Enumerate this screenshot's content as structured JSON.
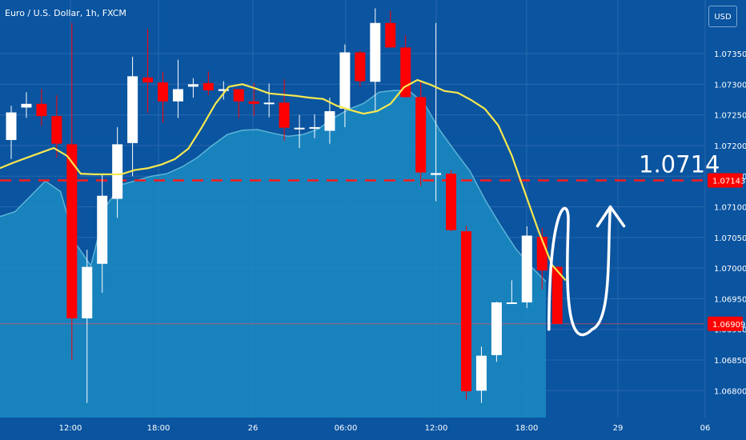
{
  "window": {
    "title": "Euro / U.S. Dollar, 1h, FXCM",
    "currency_button": "USD"
  },
  "colors": {
    "background": "#0a54a0",
    "grid": "#2b68ab",
    "bull_candle": "#ffffff",
    "bear_candle": "#ff0000",
    "moving_average": "#f7e84e",
    "area_fill": "#1b8bc2",
    "area_line": "#5db4d6",
    "level_line": "#ff1a1a",
    "axis_text": "#ffffff",
    "current_price_tag": "#ff0000",
    "projection_arrow": "#ffffff"
  },
  "chart_data": {
    "type": "candlestick",
    "title": "Euro / U.S. Dollar, 1h, FXCM",
    "price_axis": {
      "ticks": [
        "1.07350",
        "1.07300",
        "1.07250",
        "1.07200",
        "1.07150",
        "1.07100",
        "1.07050",
        "1.07000",
        "1.06950",
        "1.06900",
        "1.06850",
        "1.06800"
      ],
      "range": [
        1.0676,
        1.0741
      ]
    },
    "time_axis": {
      "ticks": [
        "12:00",
        "18:00",
        "26",
        "06:00",
        "12:00",
        "18:00",
        "29",
        "06"
      ]
    },
    "candles": [
      {
        "open": 1.07209,
        "high": 1.07265,
        "low": 1.07178,
        "close": 1.07254
      },
      {
        "open": 1.07262,
        "high": 1.07287,
        "low": 1.07245,
        "close": 1.07268
      },
      {
        "open": 1.07268,
        "high": 1.07292,
        "low": 1.07232,
        "close": 1.07248
      },
      {
        "open": 1.07248,
        "high": 1.07282,
        "low": 1.0718,
        "close": 1.07203
      },
      {
        "open": 1.07202,
        "high": 1.074,
        "low": 1.0685,
        "close": 1.06918
      },
      {
        "open": 1.06918,
        "high": 1.0703,
        "low": 1.0678,
        "close": 1.07002
      },
      {
        "open": 1.07007,
        "high": 1.07153,
        "low": 1.0696,
        "close": 1.07118
      },
      {
        "open": 1.07113,
        "high": 1.0723,
        "low": 1.07082,
        "close": 1.07202
      },
      {
        "open": 1.07204,
        "high": 1.07345,
        "low": 1.0715,
        "close": 1.07313
      },
      {
        "open": 1.07311,
        "high": 1.0739,
        "low": 1.07253,
        "close": 1.07303
      },
      {
        "open": 1.07303,
        "high": 1.0732,
        "low": 1.07237,
        "close": 1.07272
      },
      {
        "open": 1.07272,
        "high": 1.0734,
        "low": 1.07245,
        "close": 1.07292
      },
      {
        "open": 1.07296,
        "high": 1.0731,
        "low": 1.07278,
        "close": 1.073
      },
      {
        "open": 1.07302,
        "high": 1.07321,
        "low": 1.07282,
        "close": 1.0729
      },
      {
        "open": 1.07289,
        "high": 1.07305,
        "low": 1.07275,
        "close": 1.07292
      },
      {
        "open": 1.07292,
        "high": 1.07292,
        "low": 1.07245,
        "close": 1.07272
      },
      {
        "open": 1.07272,
        "high": 1.07302,
        "low": 1.07248,
        "close": 1.07268
      },
      {
        "open": 1.07268,
        "high": 1.07301,
        "low": 1.07246,
        "close": 1.0727
      },
      {
        "open": 1.0727,
        "high": 1.07308,
        "low": 1.07208,
        "close": 1.07229
      },
      {
        "open": 1.07229,
        "high": 1.0725,
        "low": 1.07196,
        "close": 1.07229
      },
      {
        "open": 1.07228,
        "high": 1.07251,
        "low": 1.07212,
        "close": 1.0723
      },
      {
        "open": 1.07224,
        "high": 1.07278,
        "low": 1.07203,
        "close": 1.07256
      },
      {
        "open": 1.0726,
        "high": 1.07365,
        "low": 1.0723,
        "close": 1.07352
      },
      {
        "open": 1.07352,
        "high": 1.07355,
        "low": 1.07296,
        "close": 1.07305
      },
      {
        "open": 1.07304,
        "high": 1.07424,
        "low": 1.07255,
        "close": 1.074
      },
      {
        "open": 1.074,
        "high": 1.0742,
        "low": 1.0736,
        "close": 1.0736
      },
      {
        "open": 1.0736,
        "high": 1.0738,
        "low": 1.07278,
        "close": 1.07279
      },
      {
        "open": 1.07279,
        "high": 1.07303,
        "low": 1.07134,
        "close": 1.07156
      },
      {
        "open": 1.07152,
        "high": 1.074,
        "low": 1.07109,
        "close": 1.07155
      },
      {
        "open": 1.07154,
        "high": 1.0716,
        "low": 1.0706,
        "close": 1.07062
      },
      {
        "open": 1.0706,
        "high": 1.07069,
        "low": 1.06786,
        "close": 1.06799
      },
      {
        "open": 1.068,
        "high": 1.06872,
        "low": 1.0678,
        "close": 1.06857
      },
      {
        "open": 1.06858,
        "high": 1.06945,
        "low": 1.06847,
        "close": 1.06944
      },
      {
        "open": 1.06942,
        "high": 1.0698,
        "low": 1.06942,
        "close": 1.06944
      },
      {
        "open": 1.06944,
        "high": 1.07068,
        "low": 1.06935,
        "close": 1.07053
      },
      {
        "open": 1.07051,
        "high": 1.07066,
        "low": 1.06965,
        "close": 1.06996
      },
      {
        "open": 1.07002,
        "high": 1.07003,
        "low": 1.06909,
        "close": 1.06909
      }
    ],
    "moving_average": [
      1.07163,
      1.07172,
      1.0718,
      1.07188,
      1.07196,
      1.07183,
      1.07154,
      1.07153,
      1.07153,
      1.07153,
      1.0716,
      1.07163,
      1.07169,
      1.07178,
      1.07195,
      1.0723,
      1.07268,
      1.07296,
      1.073,
      1.07293,
      1.07285,
      1.07283,
      1.07281,
      1.07278,
      1.07276,
      1.07265,
      1.07258,
      1.07252,
      1.07256,
      1.07268,
      1.07295,
      1.07307,
      1.07299,
      1.07289,
      1.07286,
      1.07274,
      1.0726,
      1.07233,
      1.07184,
      1.07122,
      1.0706,
      1.07005,
      1.0698
    ],
    "area": [
      1.07084,
      1.07092,
      1.07117,
      1.07142,
      1.07125,
      1.0704,
      1.07004,
      1.07101,
      1.07136,
      1.07143,
      1.0715,
      1.07154,
      1.07165,
      1.0718,
      1.072,
      1.07218,
      1.07225,
      1.07226,
      1.0722,
      1.07215,
      1.07218,
      1.07227,
      1.07245,
      1.07259,
      1.07269,
      1.07287,
      1.0729,
      1.07289,
      1.07268,
      1.07225,
      1.07191,
      1.07158,
      1.07111,
      1.0707,
      1.07032,
      1.07003,
      1.06978
    ],
    "level": {
      "value": 1.07143,
      "label": "1.0714",
      "tag": "1.07143"
    },
    "current_price": {
      "value": 1.06909,
      "tag": "1.06909"
    },
    "projection": [
      {
        "t": 35.45,
        "v": 1.069
      },
      {
        "t": 36.2,
        "v": 1.0708
      },
      {
        "t": 37.4,
        "v": 1.0704
      },
      {
        "t": 38.3,
        "v": 1.069
      },
      {
        "t": 39.3,
        "v": 1.0706
      },
      {
        "t": 39.5,
        "v": 1.071
      }
    ]
  }
}
